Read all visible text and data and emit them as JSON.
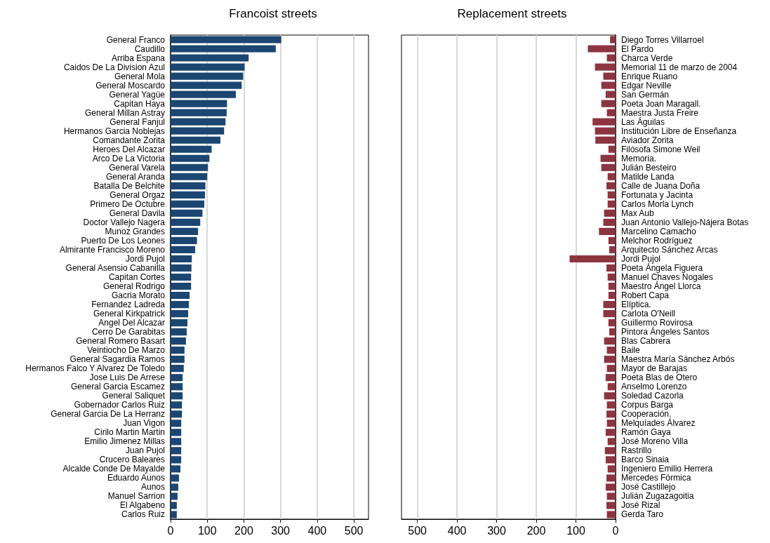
{
  "chart_data": [
    {
      "type": "bar",
      "orientation": "horizontal",
      "title": "Francoist streets",
      "color": "#1b4671",
      "xlim": [
        0,
        540
      ],
      "xticks": [
        0,
        100,
        200,
        300,
        400,
        500
      ],
      "grid": "x",
      "categories": [
        "General Franco",
        "Caudillo",
        "Arriba Espana",
        "Caidos De La Division Azul",
        "General Mola",
        "General Moscardo",
        "General Yagüe",
        "Capitan Haya",
        "General Millan Astray",
        "General Fanjul",
        "Hermanos Garcia Noblejas",
        "Comandante Zorita",
        "Heroes Del Alcazar",
        "Arco De La Victoria",
        "General Varela",
        "General Aranda",
        "Batalla De Belchite",
        "General Orgaz",
        "Primero De Octubre",
        "General Davila",
        "Doctor Vallejo Nagera",
        "Munoz Grandes",
        "Puerto De Los Leones",
        "Almirante Francisco Moreno",
        "Jordi Pujol",
        "General Asensio Cabanilla",
        "Capitan Cortes",
        "General Rodrigo",
        "Gacria Morato",
        "Fernandez Ladreda",
        "General Kirkpatrick",
        "Angel Del Alcazar",
        "Cerro De Garabitas",
        "General Romero Basart",
        "Veintiocho De Marzo",
        "General Sagardia Ramos",
        "Hermanos Falco Y Alvarez De Toledo",
        "Jose Luis De Arrese",
        "General Garcia Escamez",
        "General Saliquet",
        "Gobernador Carlos Ruiz",
        "General Garcia De La Herranz",
        "Juan Vigon",
        "Cirilo Martin Martin",
        "Emilio Jimenez Millas",
        "Juan Pujol",
        "Crucero Baleares",
        "Alcalde Conde De Mayalde",
        "Eduardo Aunos",
        "Aunos",
        "Manuel Sarrion",
        "El Algabeno",
        "Carlos Ruiz"
      ],
      "values": [
        302,
        287,
        213,
        202,
        198,
        194,
        178,
        154,
        153,
        150,
        146,
        136,
        112,
        106,
        102,
        100,
        95,
        94,
        92,
        87,
        81,
        75,
        72,
        67,
        58,
        57,
        56,
        56,
        52,
        50,
        48,
        46,
        44,
        42,
        38,
        38,
        36,
        33,
        33,
        33,
        31,
        31,
        29,
        29,
        29,
        29,
        29,
        27,
        23,
        21,
        19,
        17,
        17
      ]
    },
    {
      "type": "bar",
      "orientation": "horizontal",
      "title": "Replacement streets",
      "color": "#8c3540",
      "xlim": [
        540,
        0
      ],
      "xticks": [
        0,
        100,
        200,
        300,
        400,
        500
      ],
      "grid": "x",
      "categories": [
        "Diego Torres Villarroel",
        "El Pardo",
        "Charca Verde",
        "Memorial 11 de marzo de 2004",
        "Enrique Ruano",
        "Edgar Neville",
        "San Germán",
        "Poeta Joan Maragall.",
        "Maestra Justa Freire",
        "Las Águilas",
        "Institución Libre de Enseñanza",
        "Aviador Zorita",
        "Filósofa Simone Weil",
        "Memoria.",
        "Julián Besteiro",
        "Matilde Landa",
        "Calle de Juana Doña",
        "Fortunata y Jacinta",
        "Carlos Morla Lynch",
        "Max Aub",
        "Juan Antonio Vallejo-Nájera Botas",
        "Marcelino Camacho",
        "Melchor Rodríguez",
        "Arquitecto Sánchez Arcas",
        "Jordi Pujol",
        "Poeta Ángela Figuera",
        "Manuel Chaves Nogales",
        "Maestro Ángel Llorca",
        "Robert Capa",
        "Elíptica.",
        "Carlota O'Neill",
        "Guillermo Rovirosa",
        "Pintora Ángeles Santos",
        "Blas Cabrera",
        "Baile",
        "Maestra María Sánchez Arbós",
        "Mayor de Barajas",
        "Poeta Blas de Otero",
        "Anselmo Lorenzo",
        "Soledad Cazorla",
        "Corpus Barga",
        "Cooperación.",
        "Melquíades Álvarez",
        "Ramón Gaya",
        "José Moreno Villa",
        "Rastrillo",
        "Barco Sinaia",
        "Ingeniero Emilio Herrera",
        "Mercedes Fórmica",
        "José Castillejo",
        "Julián Zugazagoitia",
        "José Rizal",
        "Gerda Taro"
      ],
      "values": [
        14,
        70,
        22,
        52,
        31,
        36,
        25,
        36,
        22,
        58,
        52,
        51,
        18,
        38,
        36,
        20,
        23,
        20,
        20,
        29,
        31,
        42,
        18,
        16,
        116,
        23,
        20,
        18,
        18,
        31,
        31,
        18,
        16,
        29,
        22,
        29,
        22,
        25,
        20,
        29,
        22,
        23,
        22,
        25,
        20,
        27,
        25,
        20,
        23,
        25,
        22,
        23,
        22
      ]
    }
  ]
}
